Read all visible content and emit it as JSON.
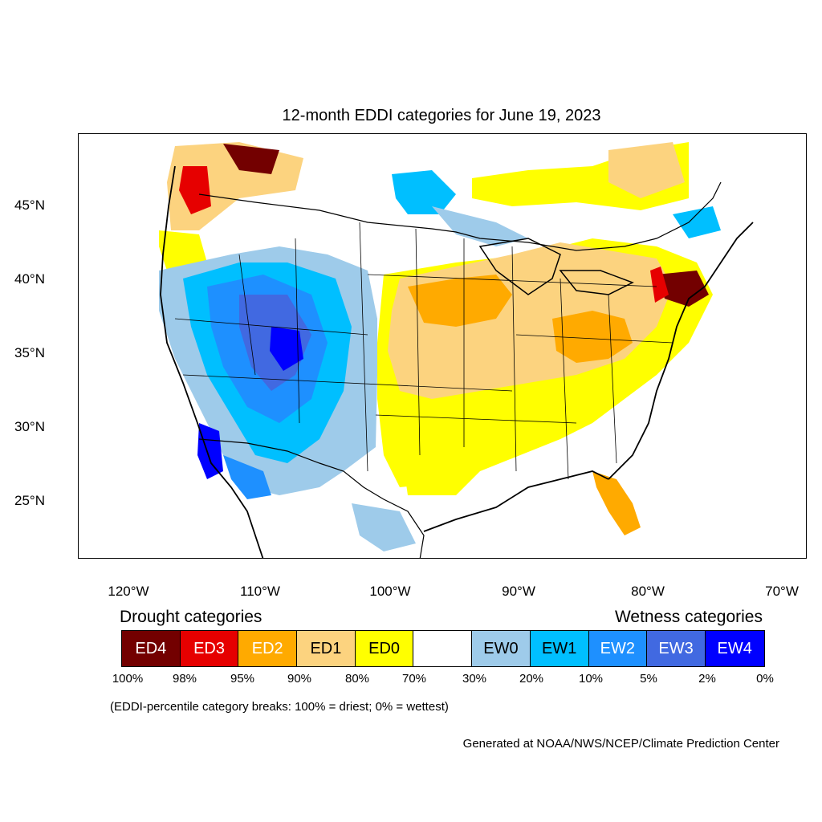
{
  "title": "12-month EDDI categories for June 19, 2023",
  "axes": {
    "latitude_labels": [
      "45°N",
      "40°N",
      "35°N",
      "30°N",
      "25°N"
    ],
    "longitude_labels": [
      "120°W",
      "110°W",
      "100°W",
      "90°W",
      "80°W",
      "70°W"
    ]
  },
  "legend": {
    "drought_heading": "Drought categories",
    "wetness_heading": "Wetness categories",
    "categories": [
      {
        "label": "ED4",
        "color": "#730000",
        "text_color": "#ffffff"
      },
      {
        "label": "ED3",
        "color": "#e60000",
        "text_color": "#ffffff"
      },
      {
        "label": "ED2",
        "color": "#ffaa00",
        "text_color": "#ffffff"
      },
      {
        "label": "ED1",
        "color": "#fcd37f",
        "text_color": "#000000"
      },
      {
        "label": "ED0",
        "color": "#ffff00",
        "text_color": "#000000"
      },
      {
        "label": "",
        "color": "#ffffff",
        "text_color": "#000000"
      },
      {
        "label": "EW0",
        "color": "#9ecbea",
        "text_color": "#000000"
      },
      {
        "label": "EW1",
        "color": "#00bfff",
        "text_color": "#000000"
      },
      {
        "label": "EW2",
        "color": "#1e90ff",
        "text_color": "#ffffff"
      },
      {
        "label": "EW3",
        "color": "#4169e1",
        "text_color": "#ffffff"
      },
      {
        "label": "EW4",
        "color": "#0000ff",
        "text_color": "#ffffff"
      }
    ],
    "percent_breaks": [
      "100%",
      "98%",
      "95%",
      "90%",
      "80%",
      "70%",
      "30%",
      "20%",
      "10%",
      "5%",
      "2%",
      "0%"
    ]
  },
  "note": "(EDDI-percentile category breaks: 100% = driest; 0% = wettest)",
  "credit": "Generated at NOAA/NWS/NCEP/Climate Prediction Center"
}
